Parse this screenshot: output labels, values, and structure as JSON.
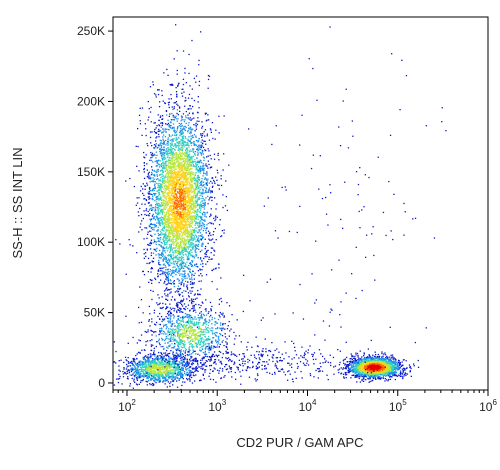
{
  "chart_data": {
    "type": "scatter",
    "plot_style": "flow cytometry density dot plot (pseudocolor)",
    "xlabel": "CD2 PUR / GAM APC",
    "ylabel": "SS-H :: SS INT LIN",
    "x_scale": "log",
    "y_scale": "linear",
    "xlim": [
      70,
      1000000
    ],
    "ylim": [
      -5000,
      260000
    ],
    "x_ticks": [
      {
        "value": 100,
        "base": "10",
        "exp": "2"
      },
      {
        "value": 1000,
        "base": "10",
        "exp": "3"
      },
      {
        "value": 10000,
        "base": "10",
        "exp": "4"
      },
      {
        "value": 100000,
        "base": "10",
        "exp": "5"
      },
      {
        "value": 1000000,
        "base": "10",
        "exp": "6"
      }
    ],
    "y_ticks": [
      {
        "value": 0,
        "label": "0"
      },
      {
        "value": 50000,
        "label": "50K"
      },
      {
        "value": 100000,
        "label": "100K"
      },
      {
        "value": 150000,
        "label": "150K"
      },
      {
        "value": 200000,
        "label": "200K"
      },
      {
        "value": 250000,
        "label": "250K"
      }
    ],
    "color_scale": [
      "#0a18c8",
      "#1a8fe8",
      "#35d0c0",
      "#b8e640",
      "#ffd21a",
      "#ff6a00",
      "#e80000"
    ],
    "populations": [
      {
        "x_center": 380,
        "x_log_sd": 0.17,
        "y_center": 130000,
        "y_sd": 32000,
        "count": 4500,
        "peak_density": 0.75
      },
      {
        "x_center": 230,
        "x_log_sd": 0.2,
        "y_center": 10000,
        "y_sd": 5000,
        "count": 1200,
        "peak_density": 0.55
      },
      {
        "x_center": 500,
        "x_log_sd": 0.22,
        "y_center": 35000,
        "y_sd": 10000,
        "count": 900,
        "peak_density": 0.5
      },
      {
        "x_center": 55000,
        "x_log_sd": 0.14,
        "y_center": 11000,
        "y_sd": 3500,
        "count": 2200,
        "peak_density": 1.0
      },
      {
        "x_center": 2500,
        "x_log_sd": 0.55,
        "y_center": 15000,
        "y_sd": 7000,
        "count": 400,
        "peak_density": 0.1
      },
      {
        "x_center": 20000,
        "x_log_sd": 0.6,
        "y_center": 110000,
        "y_sd": 60000,
        "count": 120,
        "peak_density": 0.02
      }
    ]
  }
}
